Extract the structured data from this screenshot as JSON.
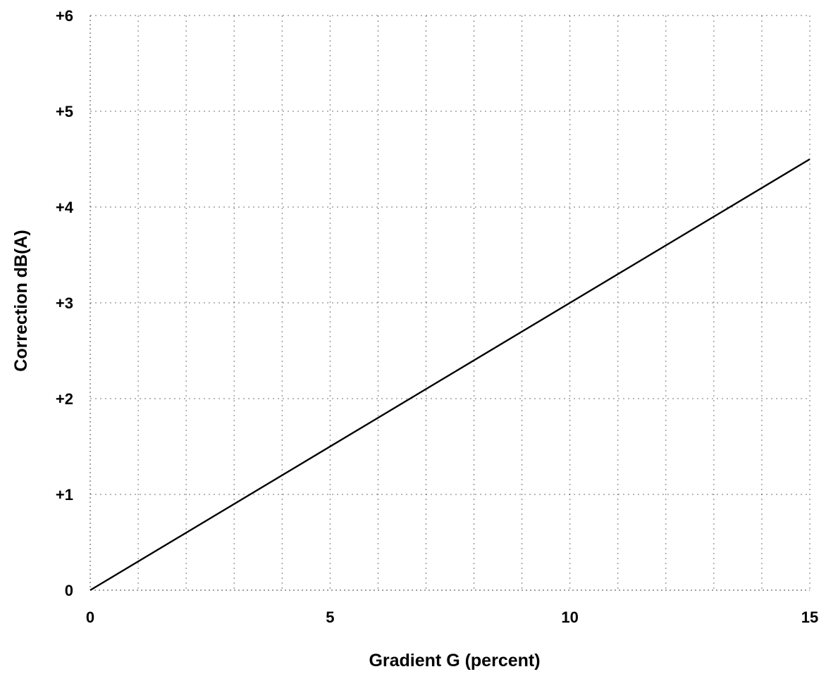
{
  "chart_data": {
    "type": "line",
    "title": "",
    "xlabel": "Gradient G (percent)",
    "ylabel": "Correction dB(A)",
    "xlim": [
      0,
      15
    ],
    "ylim": [
      0,
      6
    ],
    "x_ticks": [
      0,
      5,
      10,
      15
    ],
    "x_tick_labels": [
      "0",
      "5",
      "10",
      "15"
    ],
    "y_ticks": [
      0,
      1,
      2,
      3,
      4,
      5,
      6
    ],
    "y_tick_labels": [
      "0",
      "+1",
      "+2",
      "+3",
      "+4",
      "+5",
      "+6"
    ],
    "grid": true,
    "x_minor_grid": [
      1,
      2,
      3,
      4,
      6,
      7,
      8,
      9,
      11,
      12,
      13,
      14
    ],
    "series": [
      {
        "x": [
          0,
          15
        ],
        "y": [
          0,
          4.5
        ]
      }
    ]
  }
}
